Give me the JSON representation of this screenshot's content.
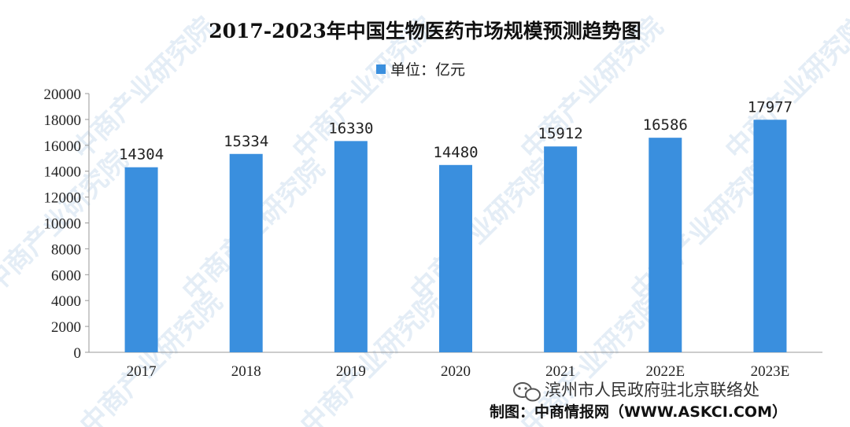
{
  "chart_data": {
    "type": "bar",
    "title": "2017-2023年中国生物医药市场规模预测趋势图",
    "categories": [
      "2017",
      "2018",
      "2019",
      "2020",
      "2021",
      "2022E",
      "2023E"
    ],
    "series": [
      {
        "name": "单位：亿元",
        "values": [
          14304,
          15334,
          16330,
          14480,
          15912,
          16586,
          17977
        ]
      }
    ],
    "ylim": [
      0,
      20000
    ],
    "yticks": [
      0,
      2000,
      4000,
      6000,
      8000,
      10000,
      12000,
      14000,
      16000,
      18000,
      20000
    ],
    "legend_position": "top-center",
    "grid": false,
    "bar_color": "#3a8fde"
  },
  "watermark": "中商产业研究院",
  "wechat_account": "滨州市人民政府驻北京联络处",
  "source": "制图：中商情报网（WWW.ASKCI.COM）"
}
